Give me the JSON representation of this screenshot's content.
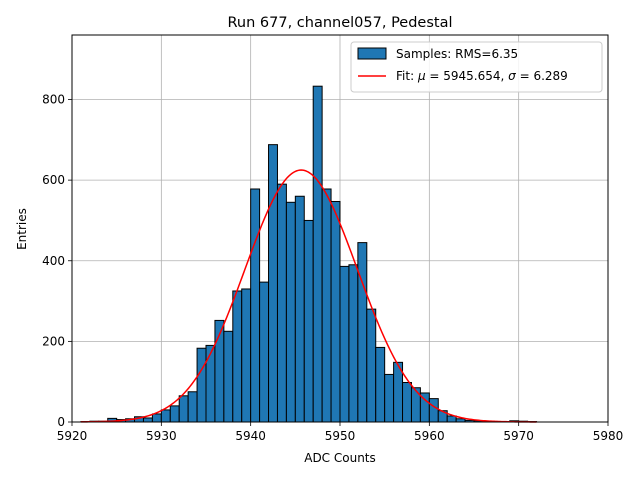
{
  "chart_data": {
    "type": "bar",
    "title": "Run 677, channel057, Pedestal",
    "xlabel": "ADC Counts",
    "ylabel": "Entries",
    "xlim": [
      5920,
      5980
    ],
    "ylim": [
      0,
      960
    ],
    "xticks": [
      5920,
      5930,
      5940,
      5950,
      5960,
      5970,
      5980
    ],
    "yticks": [
      0,
      200,
      400,
      600,
      800
    ],
    "grid": true,
    "legend_position": "top-right",
    "legend": {
      "hist_label": "Samples: RMS=6.35",
      "fit_label_prefix": "Fit: ",
      "mu_symbol": "μ",
      "fit_mu_text": " = 5945.654, ",
      "sigma_symbol": "σ",
      "fit_sigma_text": " = 6.289"
    },
    "histogram": {
      "bin_width": 1,
      "bin_starts": [
        5921,
        5922,
        5923,
        5924,
        5925,
        5926,
        5927,
        5928,
        5929,
        5930,
        5931,
        5932,
        5933,
        5934,
        5935,
        5936,
        5937,
        5938,
        5939,
        5940,
        5941,
        5942,
        5943,
        5944,
        5945,
        5946,
        5947,
        5948,
        5949,
        5950,
        5951,
        5952,
        5953,
        5954,
        5955,
        5956,
        5957,
        5958,
        5959,
        5960,
        5961,
        5962,
        5963,
        5964,
        5965,
        5966,
        5967,
        5968,
        5969,
        5970,
        5971
      ],
      "values": [
        1,
        2,
        2,
        9,
        6,
        8,
        13,
        10,
        20,
        30,
        40,
        65,
        75,
        183,
        190,
        252,
        225,
        325,
        330,
        578,
        347,
        688,
        590,
        545,
        560,
        500,
        833,
        578,
        547,
        386,
        390,
        445,
        280,
        185,
        118,
        148,
        98,
        85,
        72,
        58,
        28,
        15,
        8,
        4,
        3,
        2,
        1,
        1,
        3,
        2,
        1
      ],
      "color": "#1f77b4",
      "edge_color": "#000000"
    },
    "fit": {
      "type": "gaussian",
      "mu": 5945.654,
      "sigma": 6.289,
      "amplitude": 625,
      "x_range": [
        5921,
        5972
      ],
      "color": "#ff0000"
    }
  }
}
